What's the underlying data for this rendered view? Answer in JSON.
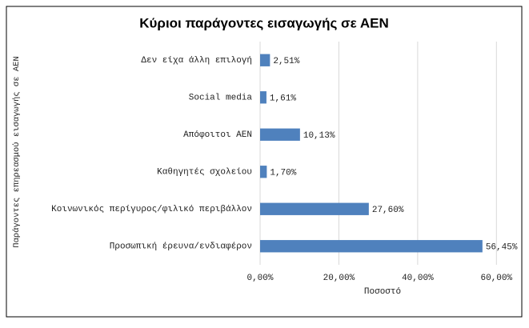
{
  "chart_data": {
    "type": "bar",
    "orientation": "horizontal",
    "title": "Κύριοι παράγοντες εισαγωγής σε ΑΕΝ",
    "x_label": "Ποσοστό",
    "y_label": "Παράγοντες επηρεασμού εισαγωγής σε ΑΕΝ",
    "categories": [
      "Δεν είχα άλλη επιλογή",
      "Social media",
      "Απόφοιτοι ΑΕΝ",
      "Καθηγητές σχολείου",
      "Κοινωνικός περίγυρος/φιλικό περιβάλλον",
      "Προσωπική έρευνα/ενδιαφέρον"
    ],
    "values": [
      2.51,
      1.61,
      10.13,
      1.7,
      27.6,
      56.45
    ],
    "value_labels": [
      "2,51%",
      "1,61%",
      "10,13%",
      "1,70%",
      "27,60%",
      "56,45%"
    ],
    "color": "#4f81bd",
    "xlim": [
      0,
      64
    ],
    "xticks": [
      {
        "value": 0,
        "label": "0,00%"
      },
      {
        "value": 20,
        "label": "20,00%"
      },
      {
        "value": 40,
        "label": "40,00%"
      },
      {
        "value": 60,
        "label": "60,00%"
      }
    ],
    "grid": true
  }
}
